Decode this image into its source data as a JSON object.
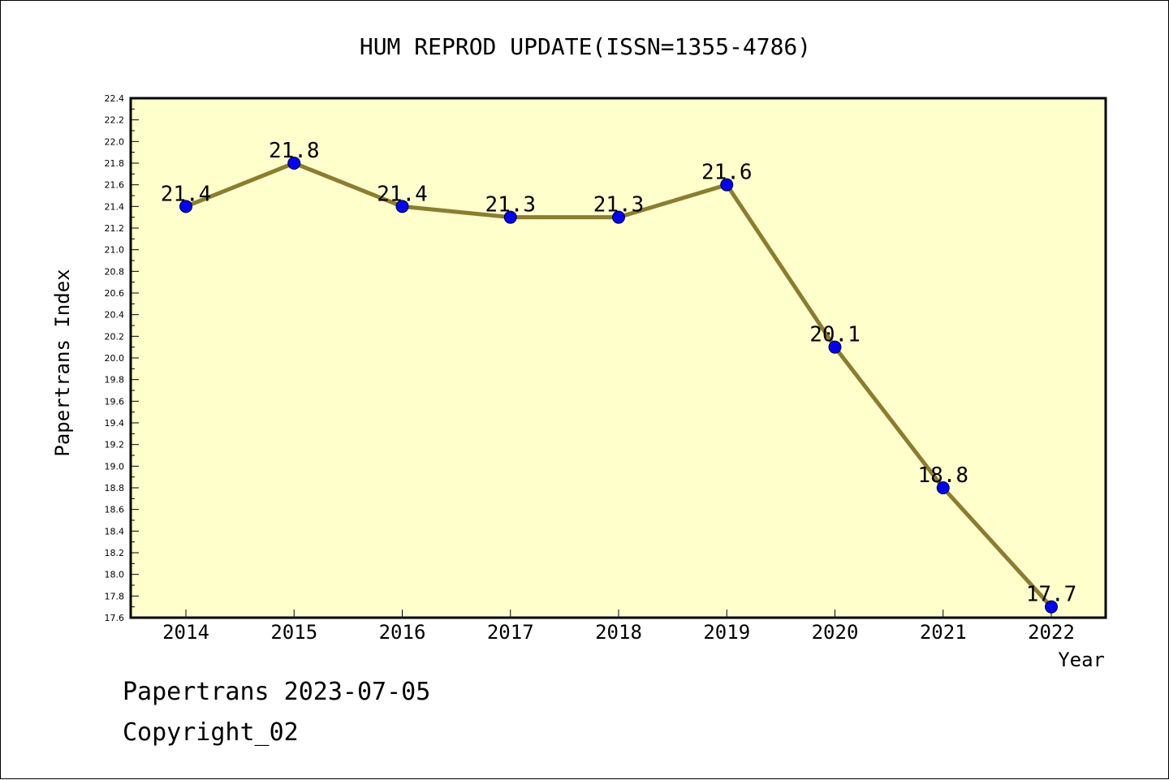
{
  "chart_data": {
    "type": "line",
    "title": "HUM REPROD UPDATE(ISSN=1355-4786)",
    "xlabel": "Year",
    "ylabel": "Papertrans Index",
    "categories": [
      "2014",
      "2015",
      "2016",
      "2017",
      "2018",
      "2019",
      "2020",
      "2021",
      "2022"
    ],
    "series": [
      {
        "values": [
          21.4,
          21.8,
          21.4,
          21.3,
          21.3,
          21.6,
          20.1,
          18.8,
          17.7
        ],
        "data_labels": [
          "21.4",
          "21.8",
          "21.4",
          "21.3",
          "21.3",
          "21.6",
          "20.1",
          "18.8",
          "17.7"
        ]
      }
    ],
    "ylim": [
      17.6,
      22.4
    ],
    "ytick_labels": [
      "17.6",
      "17.8",
      "18.0",
      "18.2",
      "18.4",
      "18.6",
      "18.8",
      "19.0",
      "19.2",
      "19.4",
      "19.6",
      "19.8",
      "20.0",
      "20.2",
      "20.4",
      "20.6",
      "20.8",
      "21.0",
      "21.2",
      "21.4",
      "21.6",
      "21.8",
      "22.0",
      "22.2",
      "22.4"
    ],
    "grid": false,
    "legend": "none",
    "colors": {
      "plot_background": "#ffffcc",
      "line": "#8b7d2e",
      "marker": "#0000ff",
      "frame": "#000000"
    }
  },
  "footer": {
    "line1": "Papertrans 2023-07-05",
    "line2": "Copyright_02"
  }
}
